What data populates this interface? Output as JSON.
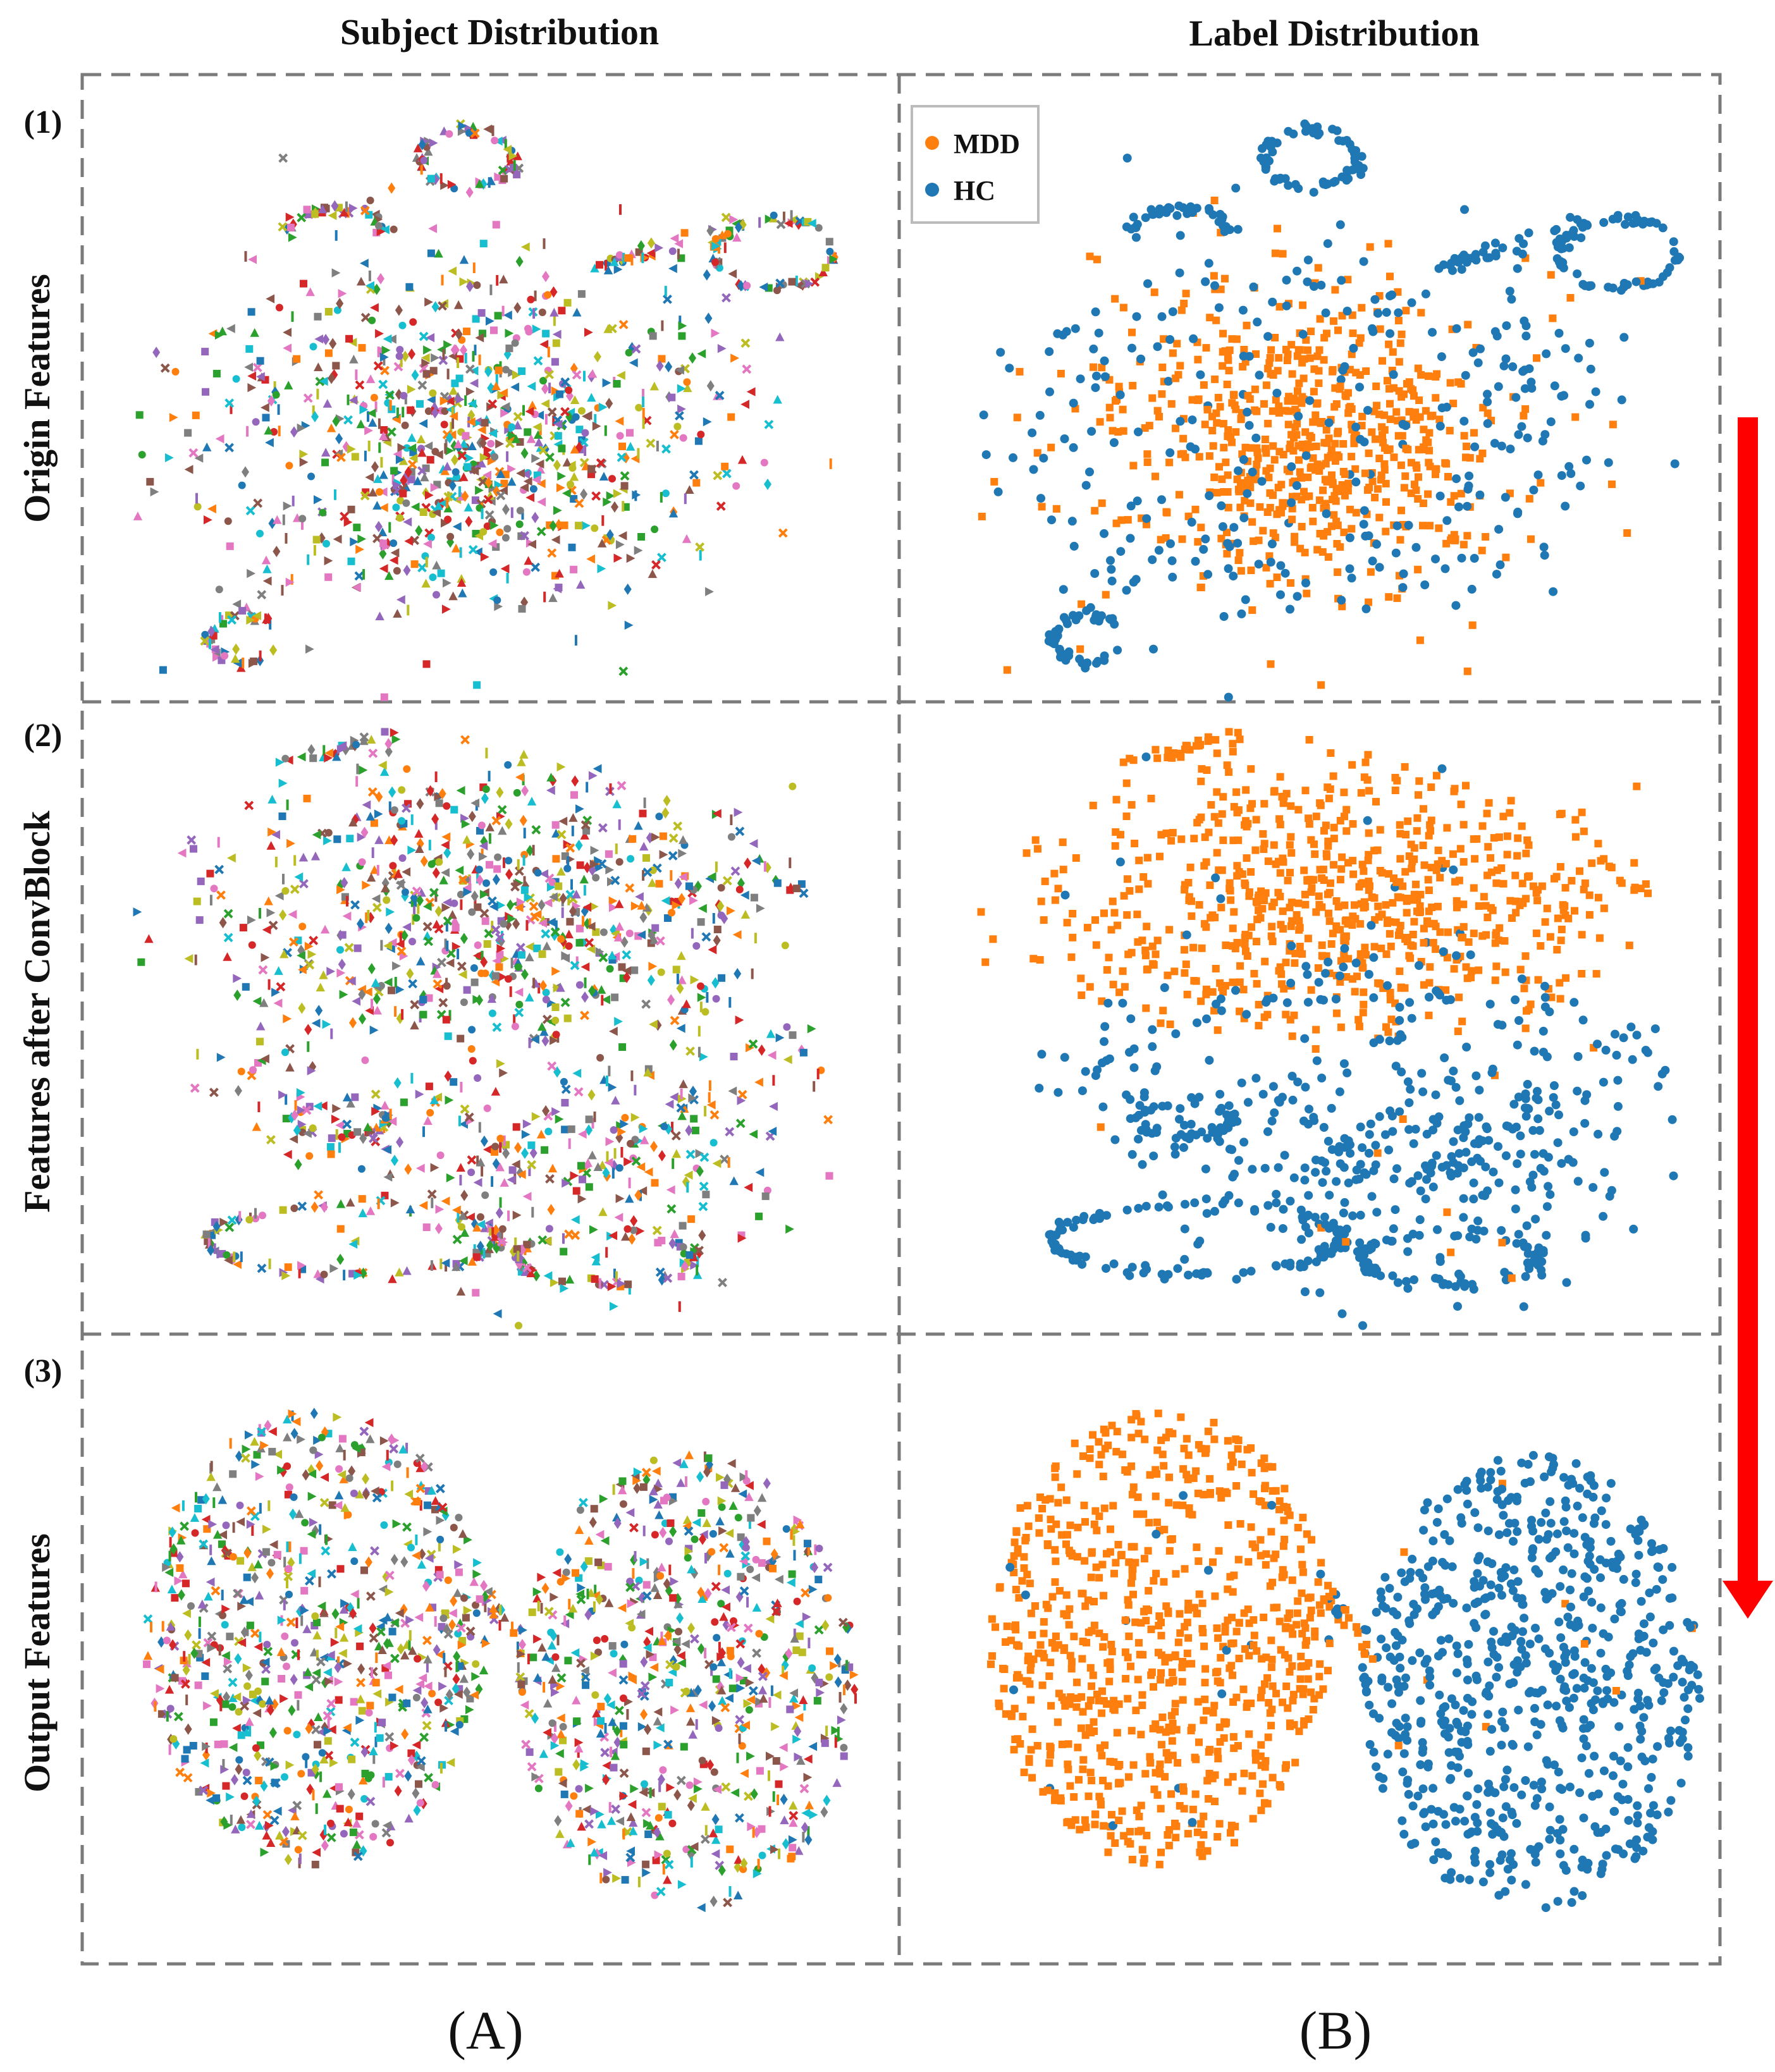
{
  "chart_data": [
    {
      "type": "scatter",
      "panel": "(A)",
      "title": "Subject Distribution",
      "description_rows": [
        "Origin Features",
        "Features after ConvBlock",
        "Output Features"
      ],
      "series_note": "Each colour/marker corresponds to one subject (many subjects)."
    },
    {
      "type": "scatter",
      "panel": "(B)",
      "title": "Label Distribution",
      "legend": [
        {
          "name": "MDD",
          "color": "#ff7f0e"
        },
        {
          "name": "HC",
          "color": "#1f77b4"
        }
      ]
    }
  ],
  "headers": {
    "col_a": "Subject Distribution",
    "col_b": "Label Distribution"
  },
  "rows": [
    {
      "num": "(1)",
      "label": "Origin Features"
    },
    {
      "num": "(2)",
      "label": "Features after ConvBlock"
    },
    {
      "num": "(3)",
      "label": "Output Features"
    }
  ],
  "legend": {
    "mdd": "MDD",
    "hc": "HC",
    "mdd_color": "#ff7f0e",
    "hc_color": "#1f77b4"
  },
  "panel_tags": {
    "a": "(A)",
    "b": "(B)"
  },
  "arrow_color": "#ff0000",
  "palette": [
    "#1f77b4",
    "#ff7f0e",
    "#2ca02c",
    "#d62728",
    "#9467bd",
    "#8c564b",
    "#e377c2",
    "#7f7f7f",
    "#bcbd22",
    "#17becf"
  ]
}
